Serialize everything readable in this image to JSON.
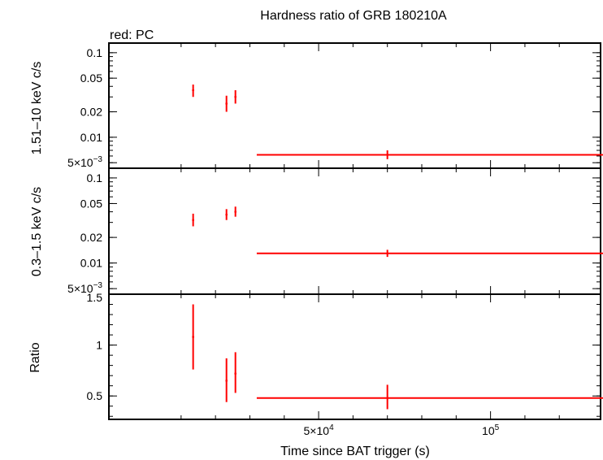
{
  "chart_data": {
    "title": "Hardness ratio of GRB 180210A",
    "subtitle": "red: PC",
    "xlabel": "Time since BAT trigger (s)",
    "x_scale": "linear",
    "x_ticks": [
      {
        "value": 50000,
        "mant": "5×10",
        "exp": "4"
      },
      {
        "value": 100000,
        "mant": "10",
        "exp": "5"
      }
    ],
    "x_minor_ticks": [
      10000,
      20000,
      30000,
      40000,
      50000,
      60000,
      70000,
      80000,
      90000,
      100000,
      110000,
      120000
    ],
    "xlim": [
      -11000,
      132000
    ],
    "series_color": "#ff0000",
    "panels": [
      {
        "type": "scatter",
        "ylabel": "1.51–10 keV c/s",
        "y_scale": "log",
        "ylim": [
          0.0043,
          0.13
        ],
        "y_ticks": [
          {
            "value": 0.1,
            "label": "0.1"
          },
          {
            "value": 0.05,
            "label": "0.05"
          },
          {
            "value": 0.02,
            "label": "0.02"
          },
          {
            "value": 0.01,
            "label": "0.01"
          },
          {
            "value": 0.005,
            "mant": "5×10",
            "exp": "−3"
          }
        ],
        "points": [
          {
            "x": 13500,
            "xerr": [
              300,
              300
            ],
            "y": 0.036,
            "yerr": [
              0.03,
              0.042
            ]
          },
          {
            "x": 23200,
            "xerr": [
              300,
              300
            ],
            "y": 0.025,
            "yerr": [
              0.02,
              0.031
            ]
          },
          {
            "x": 25800,
            "xerr": [
              300,
              300
            ],
            "y": 0.03,
            "yerr": [
              0.025,
              0.036
            ]
          },
          {
            "x": 70000,
            "xerr": [
              38000,
              113000
            ],
            "y": 0.0062,
            "yerr": [
              0.0055,
              0.007
            ]
          }
        ]
      },
      {
        "type": "scatter",
        "ylabel": "0.3–1.5 keV c/s",
        "y_scale": "log",
        "ylim": [
          0.0043,
          0.13
        ],
        "y_ticks": [
          {
            "value": 0.1,
            "label": "0.1"
          },
          {
            "value": 0.05,
            "label": "0.05"
          },
          {
            "value": 0.02,
            "label": "0.02"
          },
          {
            "value": 0.01,
            "label": "0.01"
          },
          {
            "value": 0.005,
            "mant": "5×10",
            "exp": "−3"
          }
        ],
        "points": [
          {
            "x": 13500,
            "xerr": [
              300,
              300
            ],
            "y": 0.032,
            "yerr": [
              0.027,
              0.038
            ]
          },
          {
            "x": 23200,
            "xerr": [
              300,
              300
            ],
            "y": 0.037,
            "yerr": [
              0.032,
              0.043
            ]
          },
          {
            "x": 25800,
            "xerr": [
              300,
              300
            ],
            "y": 0.04,
            "yerr": [
              0.035,
              0.046
            ]
          },
          {
            "x": 70000,
            "xerr": [
              38000,
              113000
            ],
            "y": 0.013,
            "yerr": [
              0.0118,
              0.0143
            ]
          }
        ]
      },
      {
        "type": "scatter",
        "ylabel": "Ratio",
        "y_scale": "linear",
        "ylim": [
          0.27,
          1.5
        ],
        "y_ticks": [
          {
            "value": 1.5,
            "label": "1.5"
          },
          {
            "value": 1,
            "label": "1"
          },
          {
            "value": 0.5,
            "label": "0.5"
          }
        ],
        "y_minor_ticks": [
          0.3,
          0.4,
          0.5,
          0.6,
          0.7,
          0.8,
          0.9,
          1.0,
          1.1,
          1.2,
          1.3,
          1.4,
          1.5
        ],
        "points": [
          {
            "x": 13500,
            "xerr": [
              300,
              300
            ],
            "y": 1.08,
            "yerr": [
              0.76,
              1.4
            ]
          },
          {
            "x": 23200,
            "xerr": [
              300,
              300
            ],
            "y": 0.65,
            "yerr": [
              0.44,
              0.87
            ]
          },
          {
            "x": 25800,
            "xerr": [
              300,
              300
            ],
            "y": 0.72,
            "yerr": [
              0.53,
              0.93
            ]
          },
          {
            "x": 70000,
            "xerr": [
              38000,
              113000
            ],
            "y": 0.48,
            "yerr": [
              0.37,
              0.61
            ]
          }
        ]
      }
    ]
  }
}
